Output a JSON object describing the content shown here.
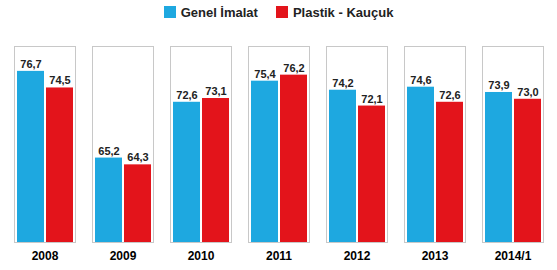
{
  "chart_data": {
    "type": "bar",
    "categories": [
      "2008",
      "2009",
      "2010",
      "2011",
      "2012",
      "2013",
      "2014/1"
    ],
    "series": [
      {
        "name": "Genel İmalat",
        "color": "#1ea8e0",
        "values": [
          76.7,
          65.2,
          72.6,
          75.4,
          74.2,
          74.6,
          73.9
        ],
        "value_labels": [
          "76,7",
          "65,2",
          "72,6",
          "75,4",
          "74,2",
          "74,6",
          "73,9"
        ]
      },
      {
        "name": "Plastik - Kauçuk",
        "color": "#e3141b",
        "values": [
          74.5,
          64.3,
          73.1,
          76.2,
          72.1,
          72.6,
          73.0
        ],
        "value_labels": [
          "74,5",
          "64,3",
          "73,1",
          "76,2",
          "72,1",
          "72,6",
          "73,0"
        ]
      }
    ],
    "ylim": [
      54,
      80
    ],
    "legend": "top",
    "data_labels": true,
    "tick_labels": "x",
    "grid": false
  }
}
